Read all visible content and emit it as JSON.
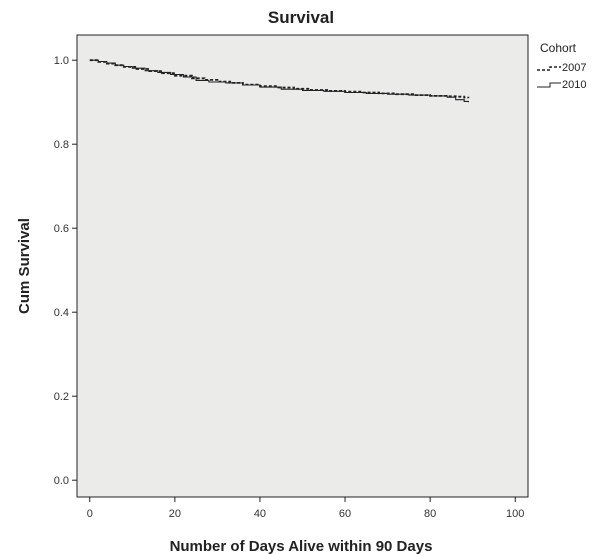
{
  "chart_data": {
    "type": "line",
    "title": "Survival",
    "xlabel": "Number of Days Alive within 90 Days",
    "ylabel": "Cum Survival",
    "xlim": [
      -3,
      103
    ],
    "ylim": [
      -0.04,
      1.06
    ],
    "x_ticks": [
      "0",
      "20",
      "40",
      "60",
      "80",
      "100"
    ],
    "y_ticks": [
      "0.0",
      "0.2",
      "0.4",
      "0.6",
      "0.8",
      "1.0"
    ],
    "grid": false,
    "plot_background": "#ebebea",
    "legend": {
      "title": "Cohort",
      "position": "top-right outside plot"
    },
    "series": [
      {
        "name": "2007",
        "style": "dashed",
        "color": "#222222",
        "x": [
          0,
          2,
          4,
          6,
          8,
          11,
          14,
          17,
          20,
          24,
          27,
          30,
          33,
          36,
          40,
          44,
          48,
          52,
          56,
          60,
          64,
          68,
          72,
          76,
          80,
          84,
          86,
          88,
          89
        ],
        "y": [
          1.0,
          0.996,
          0.992,
          0.988,
          0.984,
          0.979,
          0.974,
          0.969,
          0.963,
          0.957,
          0.953,
          0.949,
          0.946,
          0.942,
          0.938,
          0.935,
          0.932,
          0.929,
          0.927,
          0.925,
          0.923,
          0.921,
          0.919,
          0.917,
          0.915,
          0.914,
          0.913,
          0.911,
          0.91
        ]
      },
      {
        "name": "2010",
        "style": "solid",
        "color": "#222222",
        "x": [
          0,
          2,
          4,
          6,
          8,
          10,
          13,
          16,
          19,
          22,
          25,
          28,
          32,
          36,
          40,
          45,
          50,
          55,
          60,
          65,
          70,
          75,
          80,
          84,
          86,
          88,
          89
        ],
        "y": [
          1.0,
          0.997,
          0.993,
          0.988,
          0.985,
          0.981,
          0.975,
          0.971,
          0.966,
          0.96,
          0.952,
          0.948,
          0.946,
          0.941,
          0.936,
          0.931,
          0.928,
          0.926,
          0.923,
          0.921,
          0.919,
          0.917,
          0.915,
          0.912,
          0.906,
          0.902,
          0.9
        ]
      }
    ]
  }
}
